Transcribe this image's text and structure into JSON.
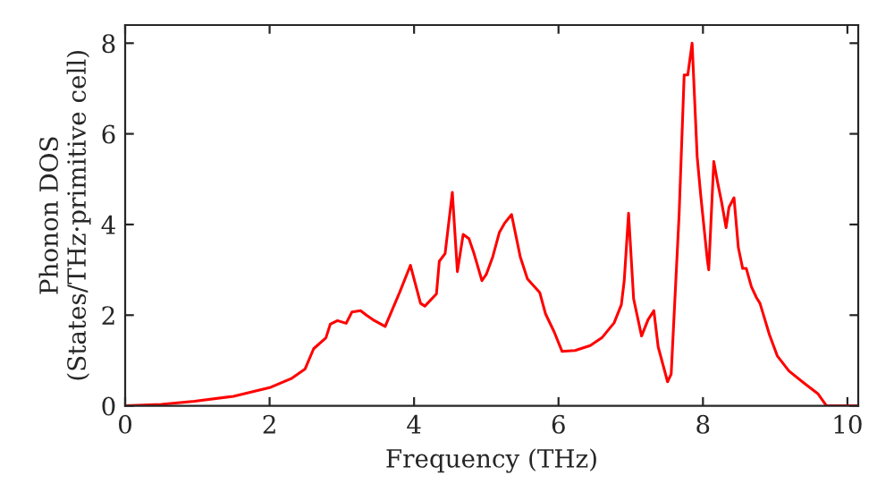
{
  "chart_data": {
    "type": "line",
    "xlabel": "Frequency (THz)",
    "ylabel": "Phonon DOS\n(States/THz·primitive cell)",
    "xlim": [
      0,
      10.15
    ],
    "ylim": [
      0,
      8.4
    ],
    "xticks": [
      0,
      2,
      4,
      6,
      8,
      10
    ],
    "yticks": [
      0,
      2,
      4,
      6,
      8
    ],
    "grid": false,
    "legend": false,
    "series": [
      {
        "color": "#ff0000",
        "x": [
          0,
          0.5,
          0.96,
          1.5,
          2.0,
          2.3,
          2.49,
          2.61,
          2.78,
          2.84,
          2.94,
          3.06,
          3.14,
          3.26,
          3.34,
          3.43,
          3.6,
          3.8,
          3.95,
          4.09,
          4.15,
          4.31,
          4.35,
          4.43,
          4.53,
          4.6,
          4.68,
          4.76,
          4.83,
          4.94,
          5.0,
          5.09,
          5.18,
          5.25,
          5.35,
          5.47,
          5.57,
          5.74,
          5.82,
          5.94,
          6.05,
          6.23,
          6.44,
          6.6,
          6.77,
          6.87,
          6.91,
          6.97,
          7.04,
          7.15,
          7.24,
          7.32,
          7.38,
          7.51,
          7.56,
          7.67,
          7.74,
          7.79,
          7.85,
          7.92,
          7.97,
          8.06,
          8.08,
          8.15,
          8.2,
          8.26,
          8.32,
          8.36,
          8.43,
          8.49,
          8.55,
          8.6,
          8.67,
          8.74,
          8.79,
          8.92,
          9.03,
          9.19,
          9.4,
          9.59,
          9.71,
          10.13
        ],
        "values": [
          0,
          0.03,
          0.1,
          0.21,
          0.4,
          0.6,
          0.81,
          1.26,
          1.5,
          1.8,
          1.88,
          1.82,
          2.07,
          2.1,
          2.0,
          1.9,
          1.75,
          2.5,
          3.1,
          2.26,
          2.2,
          2.47,
          3.19,
          3.36,
          4.71,
          2.96,
          3.78,
          3.69,
          3.36,
          2.76,
          2.9,
          3.29,
          3.82,
          4.02,
          4.22,
          3.29,
          2.8,
          2.5,
          2.03,
          1.63,
          1.2,
          1.22,
          1.33,
          1.5,
          1.83,
          2.23,
          2.76,
          4.25,
          2.36,
          1.54,
          1.9,
          2.1,
          1.3,
          0.53,
          0.7,
          4.22,
          7.3,
          7.3,
          8.0,
          5.49,
          4.63,
          3.23,
          3.0,
          5.39,
          4.95,
          4.48,
          3.93,
          4.38,
          4.59,
          3.49,
          3.03,
          3.03,
          2.63,
          2.39,
          2.26,
          1.57,
          1.1,
          0.77,
          0.5,
          0.27,
          0,
          0
        ]
      }
    ]
  }
}
